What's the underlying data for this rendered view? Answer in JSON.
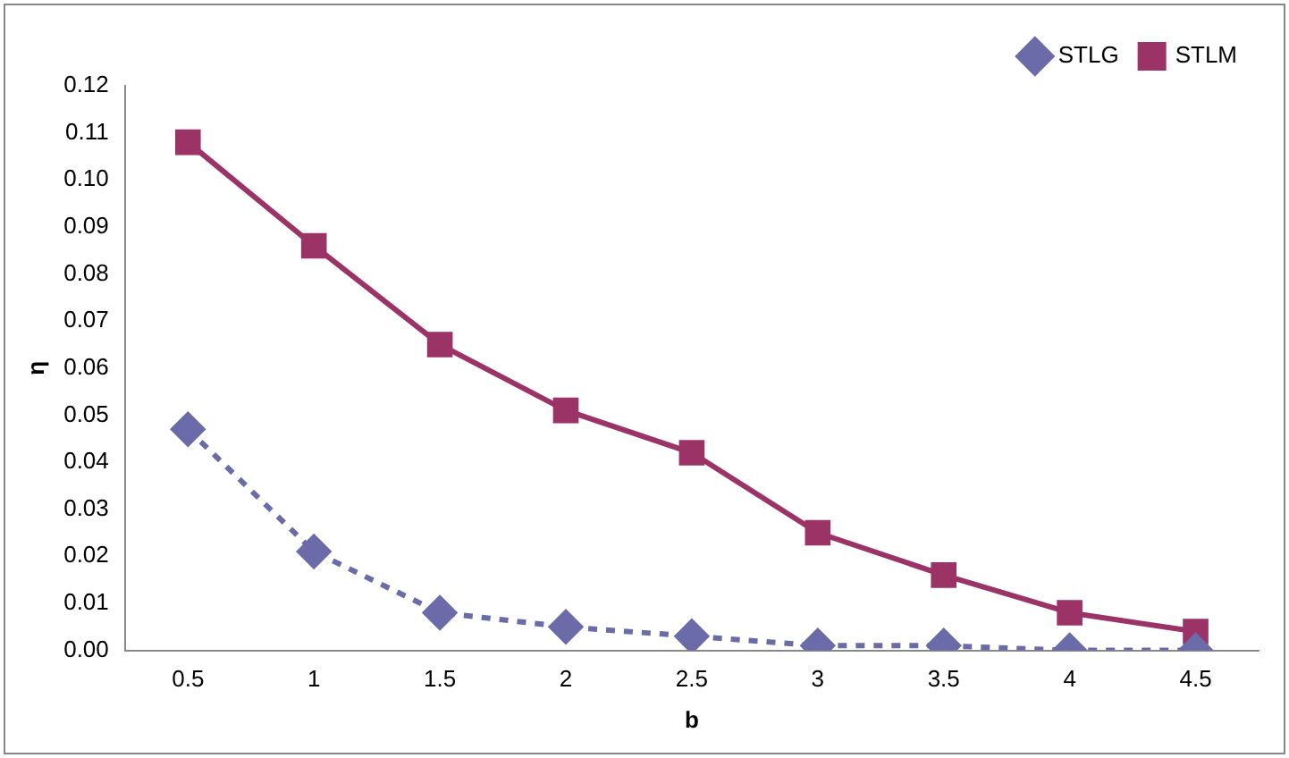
{
  "chart_data": {
    "type": "line",
    "xlabel": "b",
    "ylabel": "η",
    "categories": [
      "0.5",
      "1",
      "1.5",
      "2",
      "2.5",
      "3",
      "3.5",
      "4",
      "4.5"
    ],
    "series": [
      {
        "name": "STLG",
        "color": "#6a6ba8",
        "marker": "diamond",
        "line_style": "dashed",
        "values": [
          0.047,
          0.021,
          0.008,
          0.005,
          0.003,
          0.001,
          0.001,
          0.0,
          0.0
        ]
      },
      {
        "name": "STLM",
        "color": "#9b3366",
        "marker": "square",
        "line_style": "solid",
        "values": [
          0.108,
          0.086,
          0.065,
          0.051,
          0.042,
          0.025,
          0.016,
          0.008,
          0.004
        ]
      }
    ],
    "ylim": [
      0,
      0.12
    ],
    "yticks": [
      {
        "value": 0,
        "label": "0.00"
      },
      {
        "value": 0.01,
        "label": "0.01"
      },
      {
        "value": 0.02,
        "label": "0.02"
      },
      {
        "value": 0.03,
        "label": "0.03"
      },
      {
        "value": 0.04,
        "label": "0.04"
      },
      {
        "value": 0.05,
        "label": "0.05"
      },
      {
        "value": 0.06,
        "label": "0.06"
      },
      {
        "value": 0.07,
        "label": "0.07"
      },
      {
        "value": 0.08,
        "label": "0.08"
      },
      {
        "value": 0.09,
        "label": "0.09"
      },
      {
        "value": 0.1,
        "label": "0.10"
      },
      {
        "value": 0.11,
        "label": "0.11"
      },
      {
        "value": 0.12,
        "label": "0.12"
      }
    ],
    "grid": false,
    "legend": "top right"
  }
}
